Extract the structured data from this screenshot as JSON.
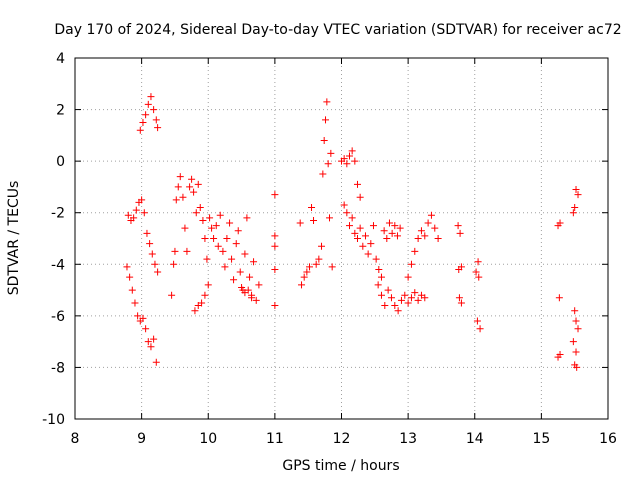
{
  "chart_data": {
    "type": "scatter",
    "title": "Day 170 of 2024, Sidereal Day-to-day VTEC variation (SDTVAR) for receiver ac72",
    "xlabel": "GPS time / hours",
    "ylabel": "SDTVAR / TECUs",
    "xlim": [
      8,
      16
    ],
    "ylim": [
      -10,
      4
    ],
    "xticks": [
      8,
      9,
      10,
      11,
      12,
      13,
      14,
      15,
      16
    ],
    "yticks": [
      -10,
      -8,
      -6,
      -4,
      -2,
      0,
      2,
      4
    ],
    "grid": true,
    "marker": "+",
    "color": "#ff0000",
    "series": [
      {
        "name": "SDTVAR",
        "points": [
          [
            8.8,
            -2.1
          ],
          [
            8.84,
            -2.3
          ],
          [
            8.88,
            -2.2
          ],
          [
            8.92,
            -1.9
          ],
          [
            8.96,
            -1.6
          ],
          [
            9.0,
            -1.5
          ],
          [
            9.04,
            -2.0
          ],
          [
            9.08,
            -2.8
          ],
          [
            9.12,
            -3.2
          ],
          [
            9.16,
            -3.6
          ],
          [
            9.2,
            -4.0
          ],
          [
            9.24,
            -4.3
          ],
          [
            8.78,
            -4.1
          ],
          [
            8.82,
            -4.5
          ],
          [
            8.86,
            -5.0
          ],
          [
            8.9,
            -5.5
          ],
          [
            8.94,
            -6.0
          ],
          [
            8.98,
            -6.2
          ],
          [
            9.02,
            -6.1
          ],
          [
            9.06,
            -6.5
          ],
          [
            9.1,
            -7.0
          ],
          [
            9.14,
            -7.2
          ],
          [
            9.18,
            -6.9
          ],
          [
            9.22,
            -7.8
          ],
          [
            8.98,
            1.2
          ],
          [
            9.02,
            1.5
          ],
          [
            9.06,
            1.8
          ],
          [
            9.1,
            2.2
          ],
          [
            9.14,
            2.5
          ],
          [
            9.18,
            2.0
          ],
          [
            9.22,
            1.6
          ],
          [
            9.24,
            1.3
          ],
          [
            9.45,
            -5.2
          ],
          [
            9.48,
            -4.0
          ],
          [
            9.5,
            -3.5
          ],
          [
            9.52,
            -1.5
          ],
          [
            9.55,
            -1.0
          ],
          [
            9.58,
            -0.6
          ],
          [
            9.62,
            -1.4
          ],
          [
            9.65,
            -2.6
          ],
          [
            9.68,
            -3.5
          ],
          [
            9.72,
            -1.0
          ],
          [
            9.75,
            -0.7
          ],
          [
            9.78,
            -1.2
          ],
          [
            9.82,
            -2.0
          ],
          [
            9.85,
            -0.9
          ],
          [
            9.88,
            -1.8
          ],
          [
            9.92,
            -2.3
          ],
          [
            9.95,
            -3.0
          ],
          [
            9.98,
            -3.8
          ],
          [
            9.8,
            -5.8
          ],
          [
            9.85,
            -5.6
          ],
          [
            9.9,
            -5.5
          ],
          [
            9.95,
            -5.2
          ],
          [
            10.0,
            -4.8
          ],
          [
            10.02,
            -2.2
          ],
          [
            10.05,
            -2.6
          ],
          [
            10.08,
            -3.0
          ],
          [
            10.12,
            -2.5
          ],
          [
            10.15,
            -3.3
          ],
          [
            10.18,
            -2.1
          ],
          [
            10.22,
            -3.5
          ],
          [
            10.25,
            -4.1
          ],
          [
            10.28,
            -3.0
          ],
          [
            10.32,
            -2.4
          ],
          [
            10.35,
            -3.8
          ],
          [
            10.38,
            -4.6
          ],
          [
            10.42,
            -3.2
          ],
          [
            10.45,
            -2.7
          ],
          [
            10.48,
            -4.3
          ],
          [
            10.52,
            -5.0
          ],
          [
            10.55,
            -3.6
          ],
          [
            10.58,
            -2.2
          ],
          [
            10.62,
            -4.5
          ],
          [
            10.65,
            -5.2
          ],
          [
            10.68,
            -3.9
          ],
          [
            10.72,
            -5.4
          ],
          [
            10.76,
            -4.8
          ],
          [
            10.5,
            -4.9
          ],
          [
            10.55,
            -5.1
          ],
          [
            10.6,
            -5.0
          ],
          [
            10.65,
            -5.3
          ],
          [
            11.0,
            -1.3
          ],
          [
            11.0,
            -2.9
          ],
          [
            11.0,
            -3.3
          ],
          [
            11.0,
            -4.2
          ],
          [
            11.0,
            -5.6
          ],
          [
            11.38,
            -2.4
          ],
          [
            11.4,
            -4.8
          ],
          [
            11.44,
            -4.5
          ],
          [
            11.48,
            -4.3
          ],
          [
            11.52,
            -4.1
          ],
          [
            11.55,
            -1.8
          ],
          [
            11.58,
            -2.3
          ],
          [
            11.62,
            -4.0
          ],
          [
            11.66,
            -3.8
          ],
          [
            11.7,
            -3.3
          ],
          [
            11.72,
            -0.5
          ],
          [
            11.74,
            0.8
          ],
          [
            11.76,
            1.6
          ],
          [
            11.78,
            2.3
          ],
          [
            11.8,
            -0.1
          ],
          [
            11.82,
            -2.2
          ],
          [
            11.84,
            0.3
          ],
          [
            11.86,
            -4.1
          ],
          [
            12.0,
            0.0
          ],
          [
            12.04,
            0.1
          ],
          [
            12.08,
            -0.1
          ],
          [
            12.12,
            0.2
          ],
          [
            12.16,
            0.4
          ],
          [
            12.2,
            0.0
          ],
          [
            12.24,
            -0.9
          ],
          [
            12.28,
            -1.4
          ],
          [
            12.04,
            -1.7
          ],
          [
            12.08,
            -2.0
          ],
          [
            12.12,
            -2.5
          ],
          [
            12.16,
            -2.2
          ],
          [
            12.2,
            -2.8
          ],
          [
            12.24,
            -3.0
          ],
          [
            12.28,
            -2.6
          ],
          [
            12.32,
            -3.3
          ],
          [
            12.36,
            -2.9
          ],
          [
            12.4,
            -3.6
          ],
          [
            12.44,
            -3.2
          ],
          [
            12.48,
            -2.5
          ],
          [
            12.52,
            -3.8
          ],
          [
            12.56,
            -4.2
          ],
          [
            12.6,
            -4.5
          ],
          [
            12.64,
            -2.7
          ],
          [
            12.68,
            -3.0
          ],
          [
            12.72,
            -2.4
          ],
          [
            12.76,
            -2.8
          ],
          [
            12.8,
            -2.5
          ],
          [
            12.84,
            -2.9
          ],
          [
            12.88,
            -2.6
          ],
          [
            12.55,
            -4.8
          ],
          [
            12.6,
            -5.2
          ],
          [
            12.65,
            -5.6
          ],
          [
            12.7,
            -5.0
          ],
          [
            12.75,
            -5.3
          ],
          [
            12.8,
            -5.6
          ],
          [
            12.85,
            -5.8
          ],
          [
            12.9,
            -5.4
          ],
          [
            12.95,
            -5.2
          ],
          [
            13.0,
            -5.5
          ],
          [
            13.05,
            -5.3
          ],
          [
            13.1,
            -5.1
          ],
          [
            13.15,
            -5.4
          ],
          [
            13.2,
            -5.2
          ],
          [
            13.25,
            -5.3
          ],
          [
            13.0,
            -4.5
          ],
          [
            13.05,
            -4.0
          ],
          [
            13.1,
            -3.5
          ],
          [
            13.15,
            -3.0
          ],
          [
            13.2,
            -2.7
          ],
          [
            13.25,
            -2.9
          ],
          [
            13.3,
            -2.4
          ],
          [
            13.35,
            -2.1
          ],
          [
            13.4,
            -2.6
          ],
          [
            13.45,
            -3.0
          ],
          [
            13.75,
            -2.5
          ],
          [
            13.78,
            -2.8
          ],
          [
            13.76,
            -4.2
          ],
          [
            13.8,
            -4.1
          ],
          [
            13.77,
            -5.3
          ],
          [
            13.8,
            -5.5
          ],
          [
            14.02,
            -4.3
          ],
          [
            14.06,
            -4.5
          ],
          [
            14.04,
            -6.2
          ],
          [
            14.08,
            -6.5
          ],
          [
            14.05,
            -3.9
          ],
          [
            15.25,
            -2.5
          ],
          [
            15.28,
            -2.4
          ],
          [
            15.27,
            -5.3
          ],
          [
            15.25,
            -7.6
          ],
          [
            15.28,
            -7.5
          ],
          [
            15.48,
            -2.0
          ],
          [
            15.5,
            -1.8
          ],
          [
            15.52,
            -1.1
          ],
          [
            15.55,
            -1.3
          ],
          [
            15.5,
            -5.8
          ],
          [
            15.52,
            -6.2
          ],
          [
            15.55,
            -6.5
          ],
          [
            15.48,
            -7.0
          ],
          [
            15.52,
            -7.4
          ],
          [
            15.5,
            -7.9
          ],
          [
            15.53,
            -8.0
          ]
        ]
      }
    ]
  }
}
